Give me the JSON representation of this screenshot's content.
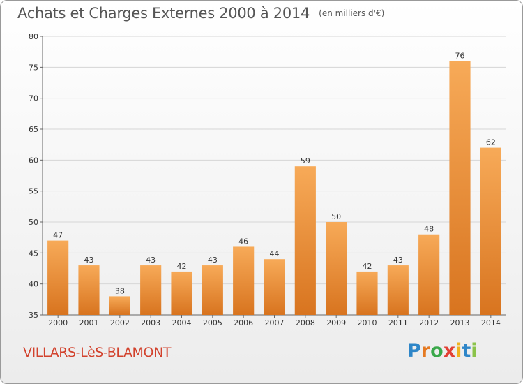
{
  "header": {
    "title": "Achats et Charges Externes 2000 à 2014",
    "subtitle": "(en milliers d'€)"
  },
  "footer": {
    "commune": "VILLARS-LèS-BLAMONT",
    "brand_letters": [
      "P",
      "r",
      "o",
      "x",
      "i",
      "t",
      "i"
    ],
    "brand_colors": [
      "#2e86c8",
      "#e57a22",
      "#3aa84a",
      "#e24034",
      "#f0b21e",
      "#2e86c8",
      "#8bc34a"
    ]
  },
  "colors": {
    "bar_light": "#f7aa58",
    "bar_dark": "#d8741f",
    "axis": "#666666",
    "grid": "#d6d6d6",
    "text": "#333333"
  },
  "chart_data": {
    "type": "bar",
    "title": "Achats et Charges Externes 2000 à 2014",
    "subtitle": "(en milliers d'€)",
    "categories": [
      "2000",
      "2001",
      "2002",
      "2003",
      "2004",
      "2005",
      "2006",
      "2007",
      "2008",
      "2009",
      "2010",
      "2011",
      "2012",
      "2013",
      "2014"
    ],
    "values": [
      47,
      43,
      38,
      43,
      42,
      43,
      46,
      44,
      59,
      50,
      42,
      43,
      48,
      76,
      62
    ],
    "ylim": [
      35,
      80
    ],
    "yticks": [
      35,
      40,
      45,
      50,
      55,
      60,
      65,
      70,
      75,
      80
    ],
    "grid": true,
    "legend": "none"
  }
}
